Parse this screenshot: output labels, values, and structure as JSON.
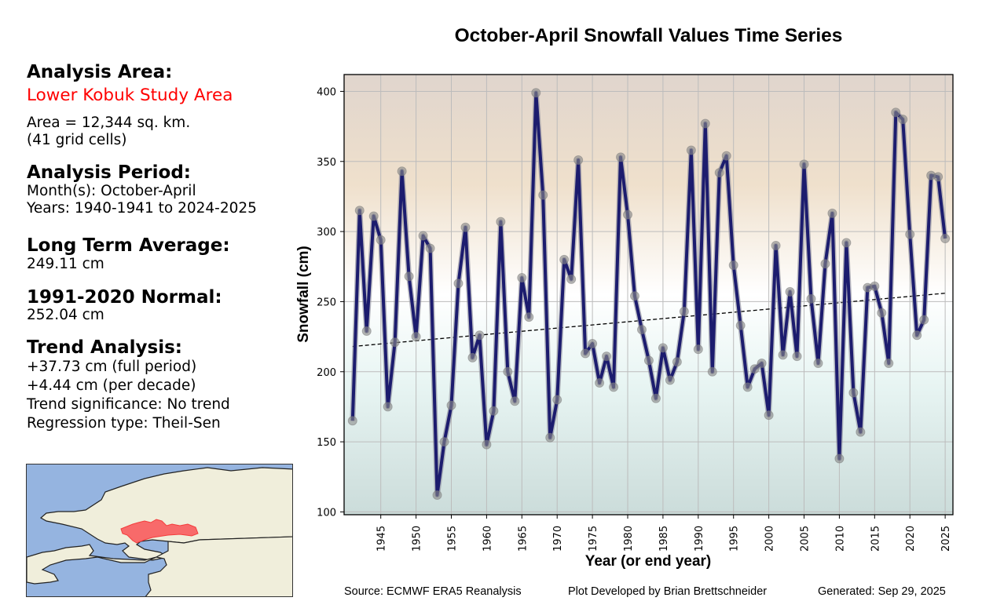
{
  "info_panel": {
    "analysis_area_heading": "Analysis Area:",
    "area_name": "Lower Kobuk Study Area",
    "area_size": "Area = 12,344 sq. km.",
    "grid_cells": "(41 grid cells)",
    "analysis_period_heading": "Analysis Period:",
    "months": "Month(s): October-April",
    "years": "Years: 1940-1941 to 2024-2025",
    "long_term_average_heading": "Long Term Average:",
    "long_term_average_value": "249.11 cm",
    "normal_heading": "1991-2020 Normal:",
    "normal_value": "252.04 cm",
    "trend_heading": "Trend Analysis:",
    "trend_full_period": "+37.73 cm (full period)",
    "trend_per_decade": "+4.44 cm (per decade)",
    "trend_significance": "Trend significance: No trend",
    "regression_type": "Regression type: Theil-Sen",
    "area_color": "#ff0000"
  },
  "map": {
    "ocean_color": "#95b4e0",
    "land_color": "#f0eedb",
    "study_area_color": "#f86a6a"
  },
  "footer": {
    "source": "Source: ECMWF ERA5 Reanalysis",
    "developer": "Plot Developed by Brian Brettschneider",
    "generated": "Generated: Sep 29, 2025"
  },
  "chart_data": {
    "type": "line",
    "title": "October-April Snowfall Values Time Series",
    "xlabel": "Year (or end year)",
    "ylabel": "Snowfall (cm)",
    "xlim": [
      1939.8,
      2026.1
    ],
    "ylim": [
      98,
      412
    ],
    "xticks": [
      1945,
      1950,
      1955,
      1960,
      1965,
      1970,
      1975,
      1980,
      1985,
      1990,
      1995,
      2000,
      2005,
      2010,
      2015,
      2020,
      2025
    ],
    "yticks": [
      100,
      150,
      200,
      250,
      300,
      350,
      400
    ],
    "grid": true,
    "line_color": "#1c1c6e",
    "marker_color": "#8a8a8a",
    "background_gradient": [
      "#e0d5cd",
      "#efe0cc",
      "#ffffff",
      "#e8f5f3",
      "#cbdcda"
    ],
    "x": [
      1941,
      1942,
      1943,
      1944,
      1945,
      1946,
      1947,
      1948,
      1949,
      1950,
      1951,
      1952,
      1953,
      1954,
      1955,
      1956,
      1957,
      1958,
      1959,
      1960,
      1961,
      1962,
      1963,
      1964,
      1965,
      1966,
      1967,
      1968,
      1969,
      1970,
      1971,
      1972,
      1973,
      1974,
      1975,
      1976,
      1977,
      1978,
      1979,
      1980,
      1981,
      1982,
      1983,
      1984,
      1985,
      1986,
      1987,
      1988,
      1989,
      1990,
      1991,
      1992,
      1993,
      1994,
      1995,
      1996,
      1997,
      1998,
      1999,
      2000,
      2001,
      2002,
      2003,
      2004,
      2005,
      2006,
      2007,
      2008,
      2009,
      2010,
      2011,
      2012,
      2013,
      2014,
      2015,
      2016,
      2017,
      2018,
      2019,
      2020,
      2021,
      2022,
      2023,
      2024,
      2025
    ],
    "series": [
      {
        "name": "Snowfall",
        "values": [
          165,
          315,
          229,
          311,
          294,
          175,
          221,
          343,
          268,
          225,
          297,
          288,
          112,
          150,
          176,
          263,
          303,
          210,
          226,
          148,
          172,
          307,
          200,
          179,
          267,
          239,
          399,
          326,
          153,
          180,
          280,
          266,
          351,
          213,
          220,
          192,
          211,
          189,
          353,
          312,
          254,
          230,
          208,
          181,
          217,
          194,
          207,
          243,
          358,
          216,
          377,
          200,
          342,
          354,
          276,
          233,
          189,
          202,
          206,
          169,
          290,
          212,
          257,
          211,
          348,
          252,
          206,
          277,
          313,
          138,
          292,
          185,
          157,
          260,
          261,
          242,
          206,
          385,
          380,
          298,
          226,
          237,
          340,
          339,
          295
        ]
      }
    ],
    "trend_line": {
      "name": "Theil-Sen trend",
      "x": [
        1941,
        2025
      ],
      "y": [
        218,
        256
      ],
      "style": "dashed"
    }
  }
}
